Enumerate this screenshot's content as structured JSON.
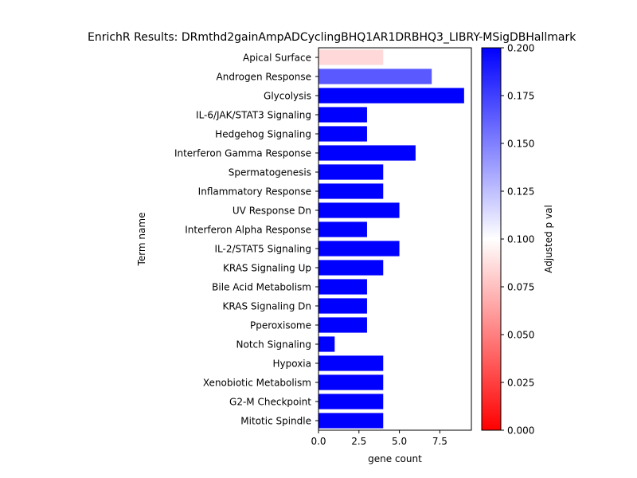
{
  "chart_data": {
    "type": "bar",
    "orientation": "horizontal",
    "title": "EnrichR Results: DRmthd2gainAmpADCyclingBHQ1AR1DRBHQ3_LIBRY-MSigDBHallmark",
    "xlabel": "gene count",
    "ylabel": "Term name",
    "categories": [
      "Apical Surface",
      "Androgen Response",
      "Glycolysis",
      "IL-6/JAK/STAT3 Signaling",
      "Hedgehog Signaling",
      "Interferon Gamma Response",
      "Spermatogenesis",
      "Inflammatory Response",
      "UV Response Dn",
      "Interferon Alpha Response",
      "IL-2/STAT5 Signaling",
      "KRAS Signaling Up",
      "Bile Acid Metabolism",
      "KRAS Signaling Dn",
      "Pperoxisome",
      "Notch Signaling",
      "Hypoxia",
      "Xenobiotic Metabolism",
      "G2-M Checkpoint",
      "Mitotic Spindle"
    ],
    "values": [
      4,
      7,
      9,
      3,
      3,
      6,
      4,
      4,
      5,
      3,
      5,
      4,
      3,
      3,
      3,
      1,
      4,
      4,
      4,
      4
    ],
    "adjusted_p": [
      0.085,
      0.165,
      0.2,
      0.2,
      0.2,
      0.2,
      0.2,
      0.2,
      0.2,
      0.2,
      0.2,
      0.2,
      0.2,
      0.2,
      0.2,
      0.2,
      0.2,
      0.2,
      0.2,
      0.2
    ],
    "xlim": [
      0,
      9.45
    ],
    "xticks": [
      0,
      2.5,
      5,
      7.5
    ],
    "xtick_labels": [
      "0.0",
      "2.5",
      "5.0",
      "7.5"
    ],
    "grid": false,
    "colorbar": {
      "label": "Adjusted p val",
      "range": [
        0,
        0.2
      ],
      "ticks": [
        0,
        0.025,
        0.05,
        0.075,
        0.1,
        0.125,
        0.15,
        0.175,
        0.2
      ],
      "tick_labels": [
        "0.000",
        "0.025",
        "0.050",
        "0.075",
        "0.100",
        "0.125",
        "0.150",
        "0.175",
        "0.200"
      ],
      "colormap": "bwr_r",
      "colors": {
        "low": "#ff0000",
        "mid": "#ffffff",
        "high": "#0000ff"
      }
    }
  }
}
